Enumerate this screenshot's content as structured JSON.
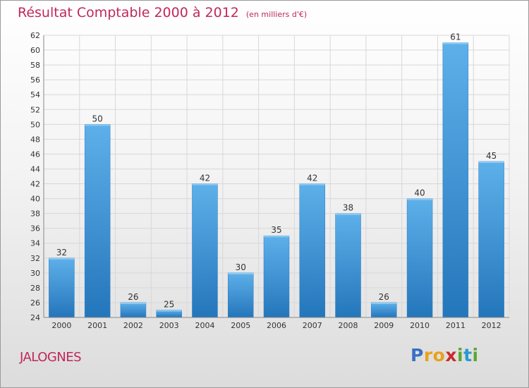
{
  "title": "Résultat Comptable 2000 à 2012",
  "subtitle": "(en milliers d'€)",
  "commune": "JALOGNES",
  "logo": {
    "letters": [
      "P",
      "r",
      "o",
      "x",
      "i",
      "t",
      "i"
    ],
    "colors": [
      "#3c6fc4",
      "#e8a21c",
      "#e8a21c",
      "#cc2a2a",
      "#5aa832",
      "#2a9ad0",
      "#5aa832"
    ]
  },
  "colors": {
    "bar": "#3a8fd6",
    "title": "#c1285a"
  },
  "chart_data": {
    "type": "bar",
    "title": "Résultat Comptable 2000 à 2012",
    "subtitle": "(en milliers d'€)",
    "categories": [
      "2000",
      "2001",
      "2002",
      "2003",
      "2004",
      "2005",
      "2006",
      "2007",
      "2008",
      "2009",
      "2010",
      "2011",
      "2012"
    ],
    "values": [
      32,
      50,
      26,
      25,
      42,
      30,
      35,
      42,
      38,
      26,
      40,
      61,
      45
    ],
    "ylim": [
      24,
      62
    ],
    "yticks": [
      24,
      26,
      28,
      30,
      32,
      34,
      36,
      38,
      40,
      42,
      44,
      46,
      48,
      50,
      52,
      54,
      56,
      58,
      60,
      62
    ],
    "grid": true,
    "data_labels": true
  }
}
